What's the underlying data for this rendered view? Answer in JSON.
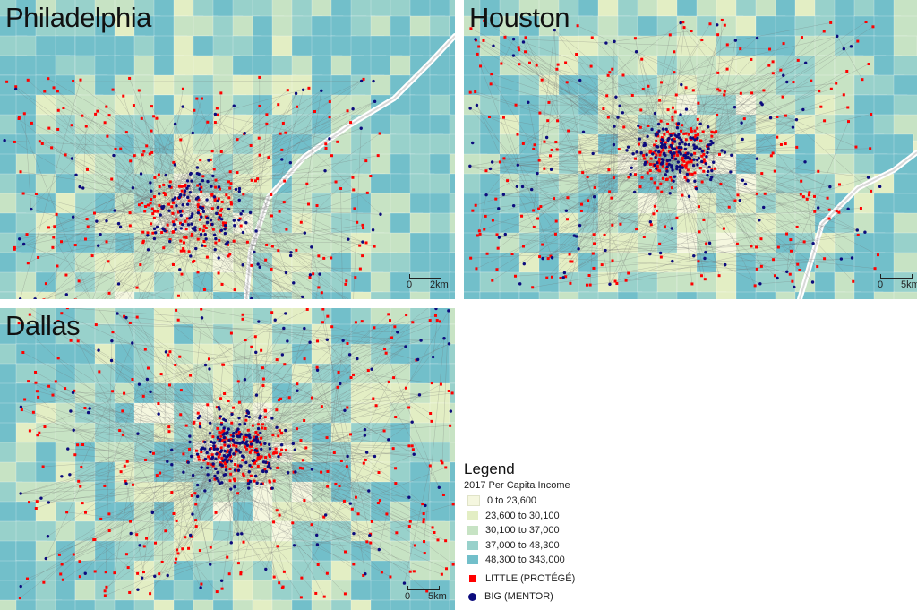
{
  "maps": [
    {
      "id": "philadelphia",
      "title": "Philadelphia",
      "scale_zero": "0",
      "scale_label": "2km"
    },
    {
      "id": "houston",
      "title": "Houston",
      "scale_zero": "0",
      "scale_label": "5km"
    },
    {
      "id": "dallas",
      "title": "Dallas",
      "scale_zero": "0",
      "scale_label": "5km"
    }
  ],
  "legend": {
    "title": "Legend",
    "subtitle": "2017 Per Capita Income",
    "income_classes": [
      {
        "label": "0 to 23,600",
        "color": "#f5f7df"
      },
      {
        "label": "23,600 to 30,100",
        "color": "#e3eec4"
      },
      {
        "label": "30,100 to 37,000",
        "color": "#c7e3c4"
      },
      {
        "label": "37,000 to 48,300",
        "color": "#98d1cb"
      },
      {
        "label": "48,300 to 343,000",
        "color": "#72bfca"
      }
    ],
    "little_label": "LITTLE (PROTÉGÉ)",
    "big_label": "BIG (MENTOR)",
    "little_color": "#ff0000",
    "big_color": "#0c0b7d"
  }
}
